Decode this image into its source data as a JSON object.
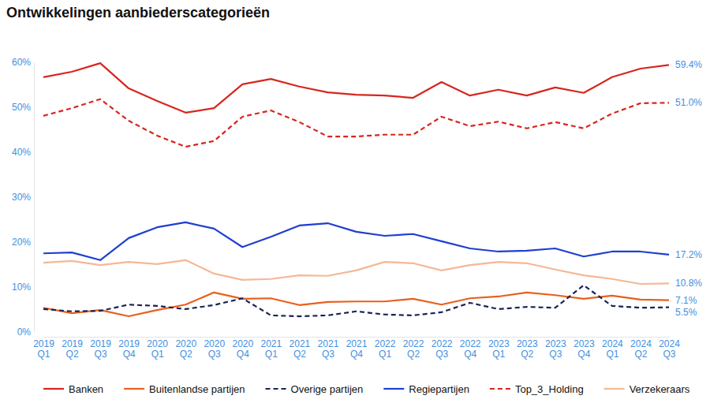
{
  "chart_data": {
    "type": "line",
    "title": "Ontwikkelingen aanbiederscategorieën",
    "categories": [
      "2019 Q1",
      "2019 Q2",
      "2019 Q3",
      "2019 Q4",
      "2020 Q1",
      "2020 Q2",
      "2020 Q3",
      "2020 Q4",
      "2021 Q1",
      "2021 Q2",
      "2021 Q3",
      "2021 Q4",
      "2022 Q1",
      "2022 Q2",
      "2022 Q3",
      "2022 Q4",
      "2023 Q1",
      "2023 Q2",
      "2023 Q3",
      "2023 Q4",
      "2024 Q1",
      "2024 Q2",
      "2024 Q3"
    ],
    "ylim": [
      0,
      60
    ],
    "yticks": [
      {
        "value": 0,
        "label": "0%"
      },
      {
        "value": 10,
        "label": "10%"
      },
      {
        "value": 20,
        "label": "20%"
      },
      {
        "value": 30,
        "label": "30%"
      },
      {
        "value": 40,
        "label": "40%"
      },
      {
        "value": 50,
        "label": "50%"
      },
      {
        "value": 60,
        "label": "60%"
      }
    ],
    "grid": false,
    "legend": "bottom",
    "series": [
      {
        "name": "Banken",
        "color": "#d7261e",
        "line_style": "solid",
        "values": [
          56.7,
          57.9,
          59.8,
          54.2,
          51.4,
          48.8,
          49.8,
          55.1,
          56.3,
          54.6,
          53.3,
          52.8,
          52.6,
          52.1,
          55.6,
          52.6,
          53.9,
          52.6,
          54.4,
          53.2,
          56.7,
          58.6,
          59.4
        ],
        "value_labels": [
          null,
          null,
          null,
          null,
          null,
          null,
          null,
          null,
          null,
          null,
          null,
          null,
          null,
          null,
          null,
          null,
          null,
          null,
          null,
          null,
          null,
          null,
          "59.4%"
        ]
      },
      {
        "name": "Buitenlandse partijen",
        "color": "#e8601c",
        "line_style": "solid",
        "values": [
          5.4,
          4.2,
          4.9,
          3.5,
          4.9,
          6.1,
          8.8,
          7.4,
          7.5,
          6.0,
          6.7,
          6.8,
          6.8,
          7.4,
          6.1,
          7.5,
          7.9,
          8.8,
          8.2,
          7.4,
          8.1,
          7.2,
          7.1
        ],
        "value_labels": [
          null,
          null,
          null,
          null,
          null,
          null,
          null,
          null,
          null,
          null,
          null,
          null,
          null,
          null,
          null,
          null,
          null,
          null,
          null,
          null,
          null,
          null,
          "7.1%"
        ]
      },
      {
        "name": "Overige partijen",
        "color": "#1a2456",
        "line_style": "dashed",
        "values": [
          5.1,
          4.6,
          4.7,
          6.1,
          5.8,
          5.1,
          6.0,
          7.5,
          3.7,
          3.5,
          3.7,
          4.6,
          3.9,
          3.7,
          4.4,
          6.5,
          5.1,
          5.6,
          5.4,
          10.4,
          5.8,
          5.4,
          5.5
        ],
        "value_labels": [
          null,
          null,
          null,
          null,
          null,
          null,
          null,
          null,
          null,
          null,
          null,
          null,
          null,
          null,
          null,
          null,
          null,
          null,
          null,
          null,
          null,
          null,
          "5.5%"
        ]
      },
      {
        "name": "Regiepartijen",
        "color": "#1f3fd0",
        "line_style": "solid",
        "values": [
          17.5,
          17.7,
          16.0,
          20.9,
          23.3,
          24.4,
          23.0,
          18.9,
          21.2,
          23.7,
          24.2,
          22.3,
          21.4,
          21.8,
          20.2,
          18.6,
          17.9,
          18.1,
          18.6,
          16.8,
          17.9,
          17.9,
          17.2
        ],
        "value_labels": [
          null,
          null,
          null,
          null,
          null,
          null,
          null,
          null,
          null,
          null,
          null,
          null,
          null,
          null,
          null,
          null,
          null,
          null,
          null,
          null,
          null,
          null,
          "17.2%"
        ]
      },
      {
        "name": "Top_3_Holding",
        "color": "#d7261e",
        "line_style": "dashed",
        "values": [
          48.1,
          49.8,
          51.8,
          47.0,
          43.7,
          41.2,
          42.5,
          47.9,
          49.3,
          46.7,
          43.5,
          43.5,
          43.9,
          43.9,
          47.9,
          45.8,
          46.8,
          45.3,
          46.7,
          45.3,
          48.6,
          50.9,
          51.0
        ],
        "value_labels": [
          null,
          null,
          null,
          null,
          null,
          null,
          null,
          null,
          null,
          null,
          null,
          null,
          null,
          null,
          null,
          null,
          null,
          null,
          null,
          null,
          null,
          null,
          "51.0%"
        ]
      },
      {
        "name": "Verzekeraars",
        "color": "#f5b894",
        "line_style": "solid",
        "values": [
          15.4,
          15.8,
          14.9,
          15.6,
          15.1,
          16.0,
          13.0,
          11.6,
          11.8,
          12.6,
          12.5,
          13.7,
          15.6,
          15.3,
          13.7,
          14.9,
          15.6,
          15.3,
          13.9,
          12.6,
          11.8,
          10.7,
          10.8
        ],
        "value_labels": [
          null,
          null,
          null,
          null,
          null,
          null,
          null,
          null,
          null,
          null,
          null,
          null,
          null,
          null,
          null,
          null,
          null,
          null,
          null,
          null,
          null,
          null,
          "10.8%"
        ]
      }
    ]
  }
}
